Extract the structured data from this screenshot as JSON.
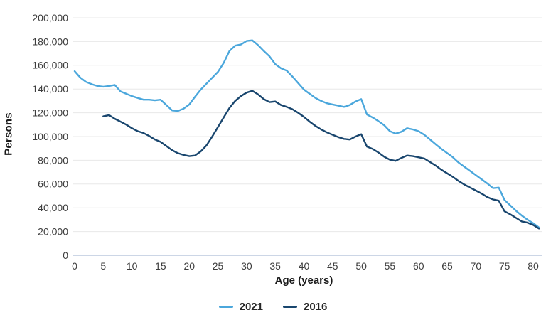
{
  "chart_data": {
    "type": "line",
    "title": "",
    "xlabel": "Age (years)",
    "ylabel": "Persons",
    "xlim": [
      0,
      81
    ],
    "ylim": [
      0,
      200000
    ],
    "grid": "horizontal",
    "legend_position": "bottom-center",
    "gridline_color": "#e8e8e8",
    "zero_axis_color": "#ccd6e6",
    "y_ticks": [
      {
        "value": 0,
        "label": "0"
      },
      {
        "value": 20000,
        "label": "20,000"
      },
      {
        "value": 40000,
        "label": "40,000"
      },
      {
        "value": 60000,
        "label": "60,000"
      },
      {
        "value": 80000,
        "label": "80,000"
      },
      {
        "value": 100000,
        "label": "100,000"
      },
      {
        "value": 120000,
        "label": "120,000"
      },
      {
        "value": 140000,
        "label": "140,000"
      },
      {
        "value": 160000,
        "label": "160,000"
      },
      {
        "value": 180000,
        "label": "180,000"
      },
      {
        "value": 200000,
        "label": "200,000"
      }
    ],
    "x_ticks": [
      {
        "value": 0,
        "label": "0"
      },
      {
        "value": 5,
        "label": "5"
      },
      {
        "value": 10,
        "label": "10"
      },
      {
        "value": 15,
        "label": "15"
      },
      {
        "value": 20,
        "label": "20"
      },
      {
        "value": 25,
        "label": "25"
      },
      {
        "value": 30,
        "label": "30"
      },
      {
        "value": 35,
        "label": "35"
      },
      {
        "value": 40,
        "label": "40"
      },
      {
        "value": 45,
        "label": "45"
      },
      {
        "value": 50,
        "label": "50"
      },
      {
        "value": 55,
        "label": "55"
      },
      {
        "value": 60,
        "label": "60"
      },
      {
        "value": 65,
        "label": "65"
      },
      {
        "value": 70,
        "label": "70"
      },
      {
        "value": 75,
        "label": "75"
      },
      {
        "value": 80,
        "label": "80"
      }
    ],
    "series": [
      {
        "name": "2021",
        "color": "#4ba7dc",
        "x": [
          0,
          1,
          2,
          3,
          4,
          5,
          6,
          7,
          8,
          9,
          10,
          11,
          12,
          13,
          14,
          15,
          16,
          17,
          18,
          19,
          20,
          21,
          22,
          23,
          24,
          25,
          26,
          27,
          28,
          29,
          30,
          31,
          32,
          33,
          34,
          35,
          36,
          37,
          38,
          39,
          40,
          41,
          42,
          43,
          44,
          45,
          46,
          47,
          48,
          49,
          50,
          51,
          52,
          53,
          54,
          55,
          56,
          57,
          58,
          59,
          60,
          61,
          62,
          63,
          64,
          65,
          66,
          67,
          68,
          69,
          70,
          71,
          72,
          73,
          74,
          75,
          76,
          77,
          78,
          79,
          80,
          81
        ],
        "values": [
          155000,
          149500,
          146000,
          144000,
          142500,
          142000,
          142500,
          143500,
          138000,
          136000,
          134000,
          132500,
          131000,
          131000,
          130500,
          131000,
          126500,
          122000,
          121500,
          123500,
          127000,
          133500,
          139500,
          144500,
          149500,
          154500,
          162000,
          172000,
          176500,
          177500,
          180500,
          181000,
          177000,
          172000,
          167500,
          161000,
          157500,
          155500,
          150500,
          145000,
          139500,
          136000,
          132500,
          130000,
          128000,
          127000,
          126000,
          125000,
          126500,
          129500,
          131500,
          118500,
          116000,
          113000,
          109500,
          104500,
          102500,
          104000,
          107000,
          106000,
          104500,
          101500,
          97500,
          93500,
          89500,
          86000,
          82500,
          78000,
          74500,
          71000,
          67500,
          64000,
          60500,
          56500,
          57000,
          46500,
          42000,
          37500,
          33500,
          30000,
          27000,
          23500
        ]
      },
      {
        "name": "2016",
        "color": "#19466e",
        "x": [
          5,
          6,
          7,
          8,
          9,
          10,
          11,
          12,
          13,
          14,
          15,
          16,
          17,
          18,
          19,
          20,
          21,
          22,
          23,
          24,
          25,
          26,
          27,
          28,
          29,
          30,
          31,
          32,
          33,
          34,
          35,
          36,
          37,
          38,
          39,
          40,
          41,
          42,
          43,
          44,
          45,
          46,
          47,
          48,
          49,
          50,
          51,
          52,
          53,
          54,
          55,
          56,
          57,
          58,
          59,
          60,
          61,
          62,
          63,
          64,
          65,
          66,
          67,
          68,
          69,
          70,
          71,
          72,
          73,
          74,
          75,
          76,
          77,
          78,
          79,
          80,
          81
        ],
        "values": [
          117000,
          118000,
          115000,
          112500,
          110000,
          107000,
          104500,
          103000,
          100500,
          97500,
          95500,
          92000,
          88500,
          86000,
          84500,
          83500,
          84000,
          87500,
          92500,
          100000,
          108000,
          116000,
          124000,
          130000,
          134000,
          137000,
          138500,
          135500,
          131500,
          129000,
          129500,
          126500,
          125000,
          123000,
          120000,
          116500,
          112500,
          109000,
          106000,
          103500,
          101500,
          99500,
          98000,
          97500,
          100000,
          102000,
          91500,
          89500,
          86500,
          83000,
          80500,
          79500,
          82000,
          84000,
          83500,
          82500,
          81500,
          78500,
          75500,
          72000,
          69000,
          66000,
          62500,
          59500,
          57000,
          54500,
          52000,
          49000,
          47000,
          46000,
          37000,
          34500,
          31500,
          28500,
          27500,
          25500,
          22500
        ]
      }
    ]
  }
}
